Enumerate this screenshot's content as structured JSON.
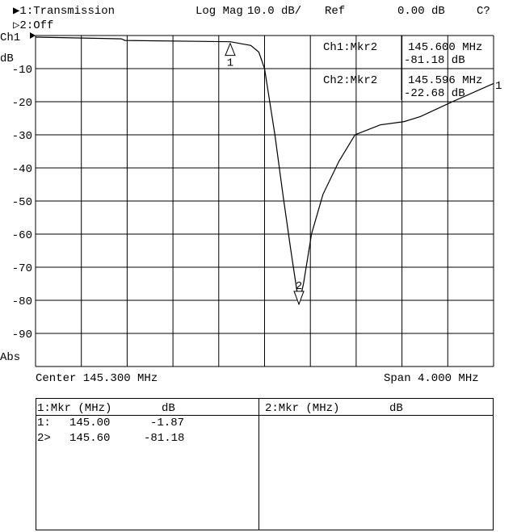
{
  "header": {
    "channel1": "▶1:Transmission",
    "format": "Log Mag",
    "scale": "10.0 dB/",
    "ref_label": "Ref",
    "ref_value": "0.00 dB",
    "status": "C?",
    "channel2": "▷2:Off"
  },
  "left": {
    "ch": "Ch1",
    "unit": "dB",
    "abs": "Abs"
  },
  "readouts": [
    {
      "label": "Ch1:Mkr2",
      "freq": "145.600 MHz",
      "value": "-81.18 dB"
    },
    {
      "label": "Ch2:Mkr2",
      "freq": "145.596 MHz",
      "value": "-22.68 dB"
    }
  ],
  "footer": {
    "center": "Center 145.300 MHz",
    "span": "Span 4.000 MHz"
  },
  "marker_table": {
    "left_header": {
      "col1": "1:Mkr (MHz)",
      "col2": "dB"
    },
    "right_header": {
      "col1": "2:Mkr (MHz)",
      "col2": "dB"
    },
    "rows": [
      {
        "id": "1:",
        "freq": "145.00",
        "db": "-1.87"
      },
      {
        "id": "2>",
        "freq": "145.60",
        "db": "-81.18"
      }
    ]
  },
  "chart_data": {
    "type": "line",
    "xlabel": "",
    "ylabel": "dB",
    "xlim": [
      143.3,
      147.3
    ],
    "ylim": [
      -100,
      0
    ],
    "grid": true,
    "yticks": [
      -10,
      -20,
      -30,
      -40,
      -50,
      -60,
      -70,
      -80,
      -90
    ],
    "ytick_labels": [
      "-10",
      "-20",
      "-30",
      "-40",
      "-50",
      "-60",
      "-70",
      "-80",
      "-90"
    ],
    "series": [
      {
        "x": [
          143.3,
          144.05,
          144.08,
          145.0,
          145.18,
          145.25,
          145.3,
          145.39,
          145.46,
          145.53,
          145.6,
          145.64,
          145.71,
          145.81,
          145.95,
          146.09,
          146.31,
          146.52,
          146.66,
          146.94,
          147.3
        ],
        "y": [
          -0.5,
          -1.0,
          -1.5,
          -1.87,
          -3,
          -5,
          -10,
          -30,
          -48,
          -65,
          -81.18,
          -75,
          -60,
          -48,
          -38,
          -30,
          -27,
          -26,
          -24.5,
          -20,
          -14.5
        ]
      }
    ],
    "markers": [
      {
        "label": "1",
        "x": 145.0,
        "y": -1.87
      },
      {
        "label": "2",
        "x": 145.6,
        "y": -81.18
      }
    ],
    "trace_end_label": "1"
  }
}
